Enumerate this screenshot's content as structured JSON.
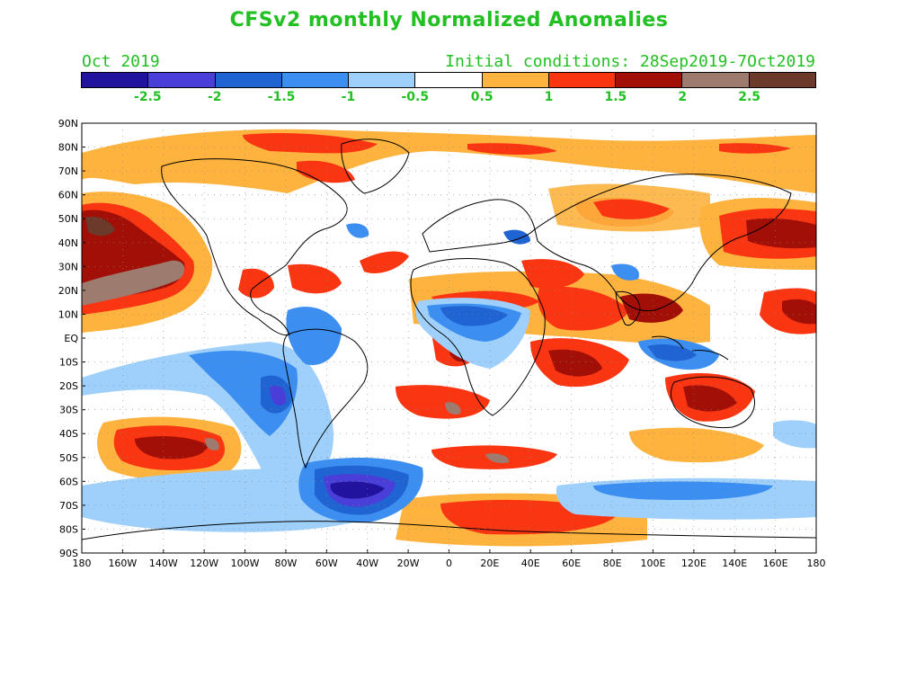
{
  "title": "CFSv2 monthly Normalized Anomalies",
  "month_label": "Oct 2019",
  "initial_conditions": "Initial conditions: 28Sep2019-7Oct2019",
  "colorbar": {
    "colors": [
      "#22139e",
      "#4a3ed8",
      "#1f64d2",
      "#3c8ff0",
      "#9fd0fb",
      "#ffffff",
      "#fdb33e",
      "#fa3512",
      "#a10f07",
      "#9e7b6f",
      "#6b3a2a"
    ],
    "labels": [
      "-2.5",
      "-2",
      "-1.5",
      "-1",
      "-0.5",
      "0.5",
      "1",
      "1.5",
      "2",
      "2.5"
    ]
  },
  "axes": {
    "lat_labels": [
      "90N",
      "80N",
      "70N",
      "60N",
      "50N",
      "40N",
      "30N",
      "20N",
      "10N",
      "EQ",
      "10S",
      "20S",
      "30S",
      "40S",
      "50S",
      "60S",
      "70S",
      "80S",
      "90S"
    ],
    "lon_labels": [
      "180",
      "160W",
      "140W",
      "120W",
      "100W",
      "80W",
      "60W",
      "40W",
      "20W",
      "0",
      "20E",
      "40E",
      "60E",
      "80E",
      "100E",
      "120E",
      "140E",
      "160E",
      "180"
    ]
  }
}
